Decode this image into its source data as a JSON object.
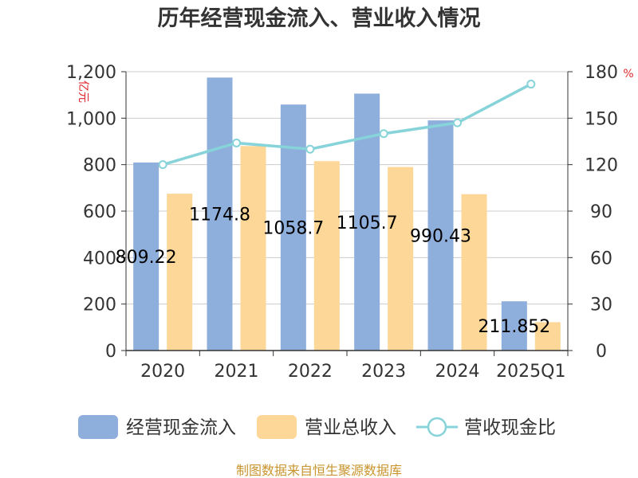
{
  "chart_data": {
    "type": "bar",
    "title": "历年经营现金流入、营业收入情况",
    "categories": [
      "2020",
      "2021",
      "2022",
      "2023",
      "2024",
      "2025Q1"
    ],
    "series": [
      {
        "name": "经营现金流入",
        "type": "bar",
        "axis": "left",
        "color": "#8eaedb",
        "values": [
          809.22,
          1174.8,
          1058.7,
          1105.7,
          990.43,
          211.852
        ],
        "labels": [
          "809.22",
          "1174.8",
          "1058.7",
          "1105.7",
          "990.43",
          "211.852"
        ]
      },
      {
        "name": "营业总收入",
        "type": "bar",
        "axis": "left",
        "color": "#fdd797",
        "values": [
          675,
          880,
          815,
          790,
          673,
          122
        ]
      },
      {
        "name": "营收现金比",
        "type": "line",
        "axis": "right",
        "color": "#86d3d9",
        "values": [
          120,
          134,
          130,
          140,
          147,
          172
        ]
      }
    ],
    "y_left": {
      "unit": "亿元",
      "ylim": [
        0,
        1200
      ],
      "ticks": [
        0,
        200,
        400,
        600,
        800,
        1000,
        1200
      ],
      "tick_labels": [
        "0",
        "200",
        "400",
        "600",
        "800",
        "1,000",
        "1,200"
      ]
    },
    "y_right": {
      "unit": "%",
      "ylim": [
        0,
        180
      ],
      "ticks": [
        0,
        30,
        60,
        90,
        120,
        150,
        180
      ],
      "tick_labels": [
        "0",
        "30",
        "60",
        "90",
        "120",
        "150",
        "180"
      ]
    },
    "grid": true,
    "legend_position": "bottom",
    "source": "制图数据来自恒生聚源数据库"
  }
}
